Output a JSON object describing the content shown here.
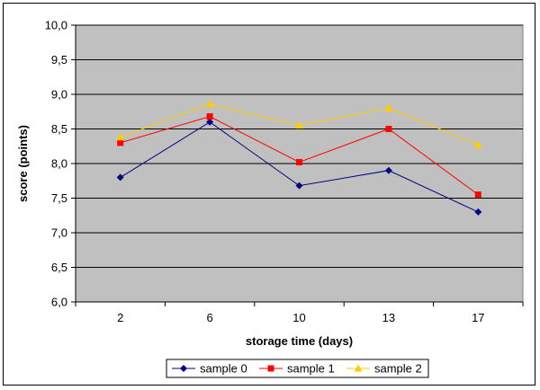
{
  "chart_data": {
    "type": "line",
    "title": "",
    "xlabel": "storage time (days)",
    "ylabel": "score (points)",
    "categories": [
      "2",
      "6",
      "10",
      "13",
      "17"
    ],
    "ylim": [
      6.0,
      10.0
    ],
    "yticks": [
      "6,0",
      "6,5",
      "7,0",
      "7,5",
      "8,0",
      "8,5",
      "9,0",
      "9,5",
      "10,0"
    ],
    "grid": "horizontal",
    "plot_background": "#c0c0c0",
    "legend_position": "bottom",
    "series": [
      {
        "name": "sample 0",
        "color": "#000080",
        "marker": "diamond",
        "values": [
          7.8,
          8.6,
          7.68,
          7.9,
          7.3
        ]
      },
      {
        "name": "sample 1",
        "color": "#ff0000",
        "marker": "square",
        "values": [
          8.3,
          8.68,
          8.02,
          8.5,
          7.55
        ]
      },
      {
        "name": "sample 2",
        "color": "#ffcc00",
        "marker": "triangle",
        "values": [
          8.38,
          8.86,
          8.55,
          8.8,
          8.27
        ]
      }
    ]
  }
}
